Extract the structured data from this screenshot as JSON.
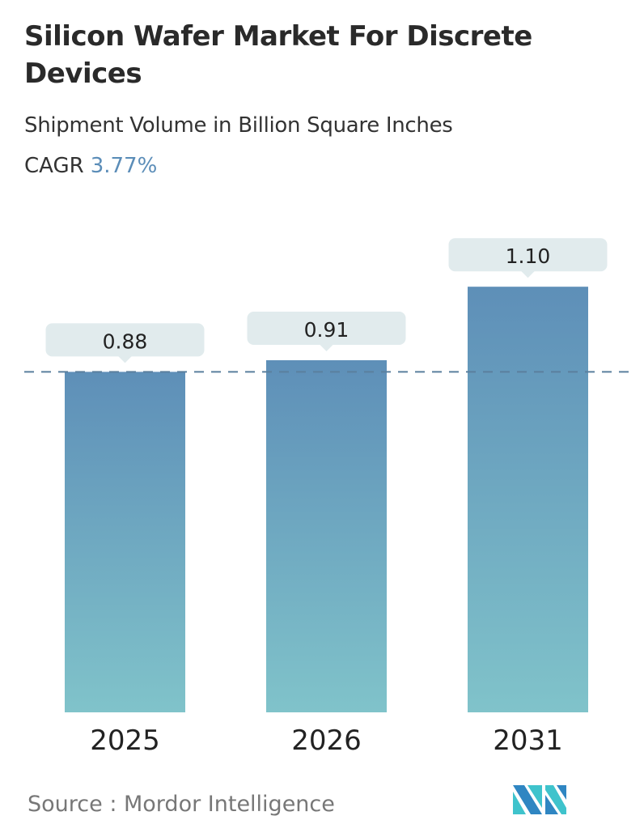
{
  "title": "Silicon Wafer Market For Discrete Devices",
  "subtitle": "Shipment Volume in Billion Square Inches",
  "cagr_label": "CAGR",
  "cagr_value": "3.77%",
  "source": "Source :  Mordor Intelligence",
  "logo_text": "Mordor Intelligence",
  "chart_data": {
    "type": "bar",
    "categories": [
      "2025",
      "2026",
      "2031"
    ],
    "values": [
      0.88,
      0.91,
      1.1
    ],
    "value_labels": [
      "0.88",
      "0.91",
      "1.10"
    ],
    "reference_line": 0.88,
    "colors": {
      "bar_top": "#5e8fb8",
      "bar_bottom": "#80c3ca",
      "label_bg": "#e1ebed",
      "reference_line": "#5b7f9e"
    }
  }
}
